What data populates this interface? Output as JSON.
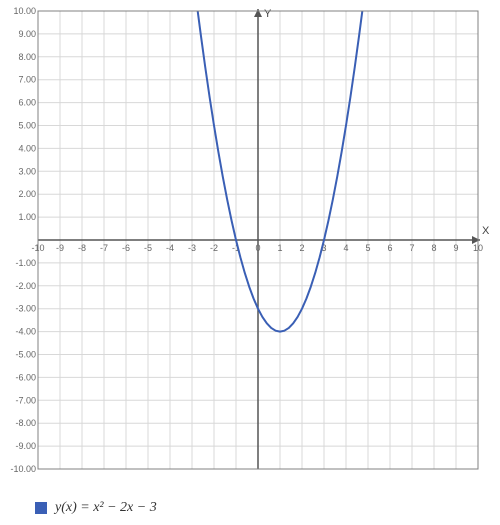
{
  "chart": {
    "type": "line",
    "xlim": [
      -10,
      10
    ],
    "ylim": [
      -10,
      10
    ],
    "xtick_step": 1,
    "ytick_step": 1,
    "background_color": "#ffffff",
    "grid_color": "#d8d8d8",
    "axis_color": "#555555",
    "border_color": "#808080",
    "tick_label_color": "#666666",
    "tick_label_fontsize": 9,
    "x_axis_label": "X",
    "y_axis_label": "Y",
    "axis_label_color": "#444444",
    "axis_label_fontsize": 11,
    "x_tick_labels": [
      "-10",
      "-9",
      "-8",
      "-7",
      "-6",
      "-5",
      "-4",
      "-3",
      "-2",
      "-1",
      "0",
      "1",
      "2",
      "3",
      "4",
      "5",
      "6",
      "7",
      "8",
      "9",
      "10"
    ],
    "y_tick_labels": [
      "-10.00",
      "-9.00",
      "-8.00",
      "-7.00",
      "-6.00",
      "-5.00",
      "-4.00",
      "-3.00",
      "-2.00",
      "-1.00",
      "0",
      "1.00",
      "2.00",
      "3.00",
      "4.00",
      "5.00",
      "6.00",
      "7.00",
      "8.00",
      "9.00",
      "10.00"
    ],
    "series": [
      {
        "name": "y(x)",
        "color": "#3a5fb5",
        "line_width": 2,
        "points": [
          [
            -2.742,
            10.0
          ],
          [
            -2.6,
            8.96
          ],
          [
            -2.4,
            7.56
          ],
          [
            -2.2,
            6.24
          ],
          [
            -2.0,
            5.0
          ],
          [
            -1.8,
            3.84
          ],
          [
            -1.6,
            2.76
          ],
          [
            -1.4,
            1.76
          ],
          [
            -1.2,
            0.84
          ],
          [
            -1.0,
            0.0
          ],
          [
            -0.8,
            -0.76
          ],
          [
            -0.6,
            -1.44
          ],
          [
            -0.4,
            -2.04
          ],
          [
            -0.2,
            -2.56
          ],
          [
            0.0,
            -3.0
          ],
          [
            0.2,
            -3.36
          ],
          [
            0.4,
            -3.64
          ],
          [
            0.6,
            -3.84
          ],
          [
            0.8,
            -3.96
          ],
          [
            1.0,
            -4.0
          ],
          [
            1.2,
            -3.96
          ],
          [
            1.4,
            -3.84
          ],
          [
            1.6,
            -3.64
          ],
          [
            1.8,
            -3.36
          ],
          [
            2.0,
            -3.0
          ],
          [
            2.2,
            -2.56
          ],
          [
            2.4,
            -2.04
          ],
          [
            2.6,
            -1.44
          ],
          [
            2.8,
            -0.76
          ],
          [
            3.0,
            0.0
          ],
          [
            3.2,
            0.84
          ],
          [
            3.4,
            1.76
          ],
          [
            3.6,
            2.76
          ],
          [
            3.8,
            3.84
          ],
          [
            4.0,
            5.0
          ],
          [
            4.2,
            6.24
          ],
          [
            4.4,
            7.56
          ],
          [
            4.6,
            8.96
          ],
          [
            4.742,
            10.0
          ]
        ]
      }
    ]
  },
  "legend": {
    "swatch_color": "#3a5fb5",
    "label_html": "y(x) = x² − 2x − 3",
    "label_plain": "y(x) = x^2 - 2x - 3"
  }
}
